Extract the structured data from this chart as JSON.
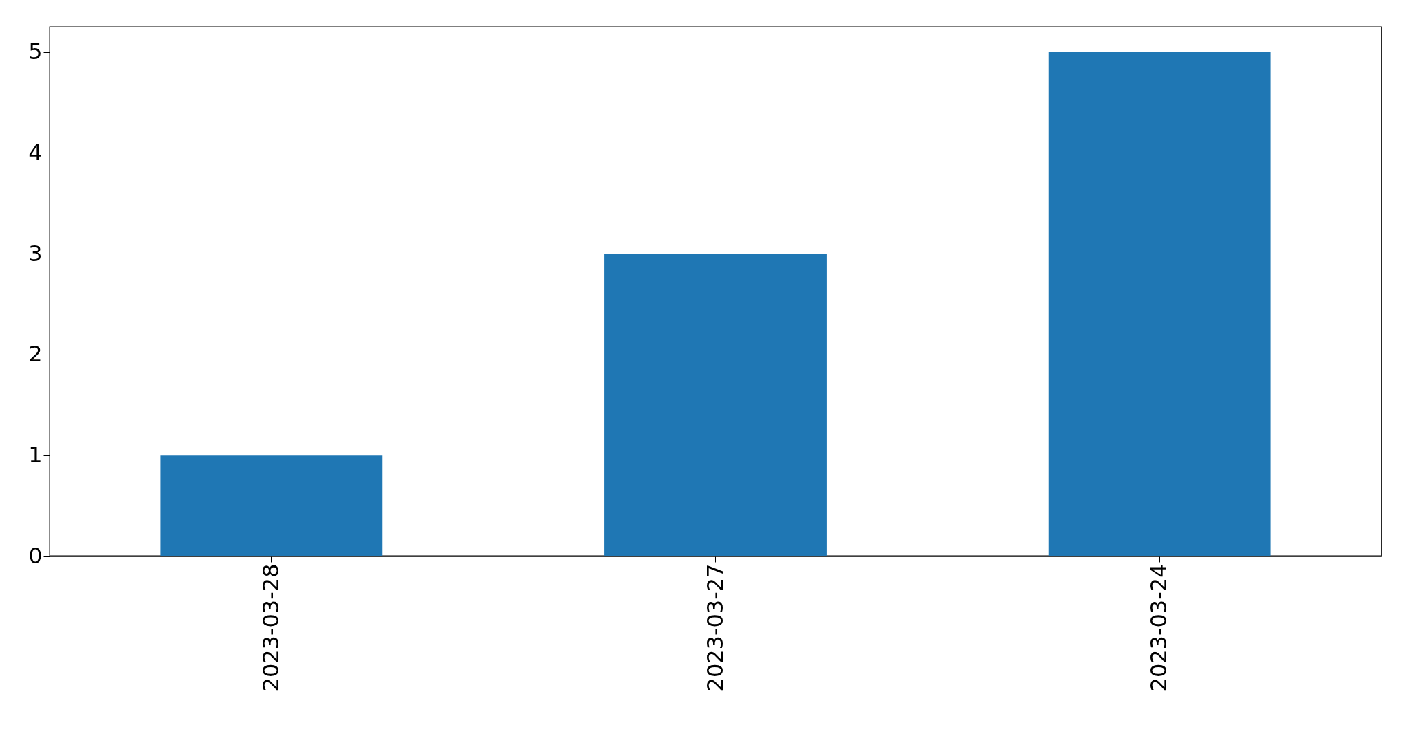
{
  "chart_data": {
    "type": "bar",
    "categories": [
      "2023-03-28",
      "2023-03-27",
      "2023-03-24"
    ],
    "values": [
      1,
      3,
      5
    ],
    "color": "#1f77b4",
    "ylim": [
      0,
      5.25
    ],
    "yticks": [
      0,
      1,
      2,
      3,
      4,
      5
    ],
    "grid": false
  }
}
